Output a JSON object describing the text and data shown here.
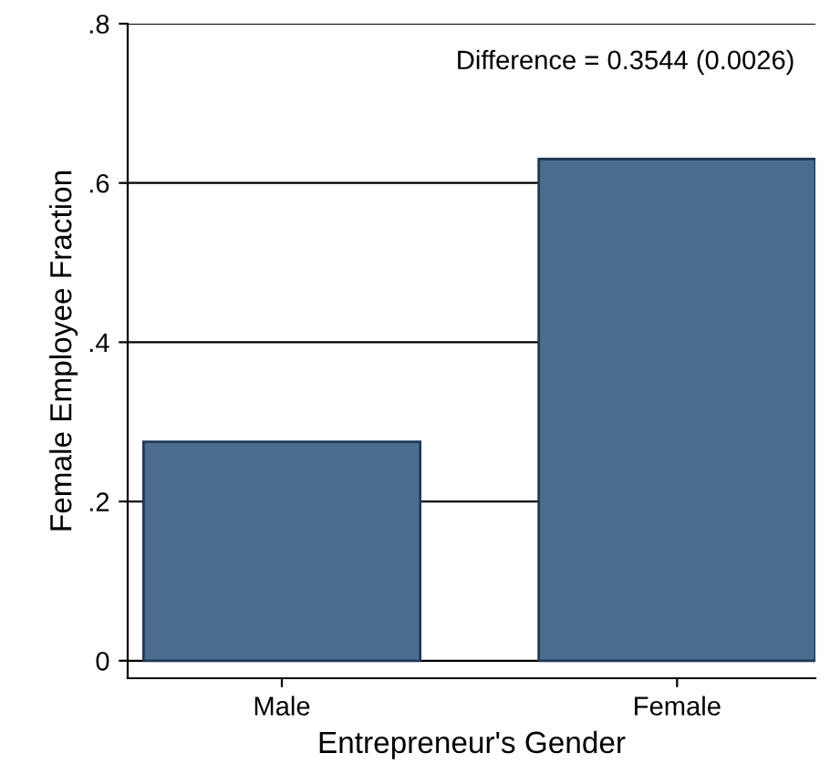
{
  "chart_data": {
    "type": "bar",
    "xlabel": "Entrepreneur's Gender",
    "ylabel": "Female Employee Fraction",
    "categories": [
      "Male",
      "Female"
    ],
    "values": [
      0.275,
      0.63
    ],
    "color": "#4a6d8f",
    "ylim": [
      -0.022,
      0.8
    ],
    "yticks": [
      0,
      {
        "value": 0.2,
        "label": ".2"
      },
      {
        "value": 0.4,
        "label": ".4"
      },
      {
        "value": 0.6,
        "label": ".6"
      },
      {
        "value": 0.8,
        "label": ".8"
      }
    ],
    "grid": "y",
    "annotations": [
      "Difference = 0.3544 (0.0026)"
    ]
  }
}
